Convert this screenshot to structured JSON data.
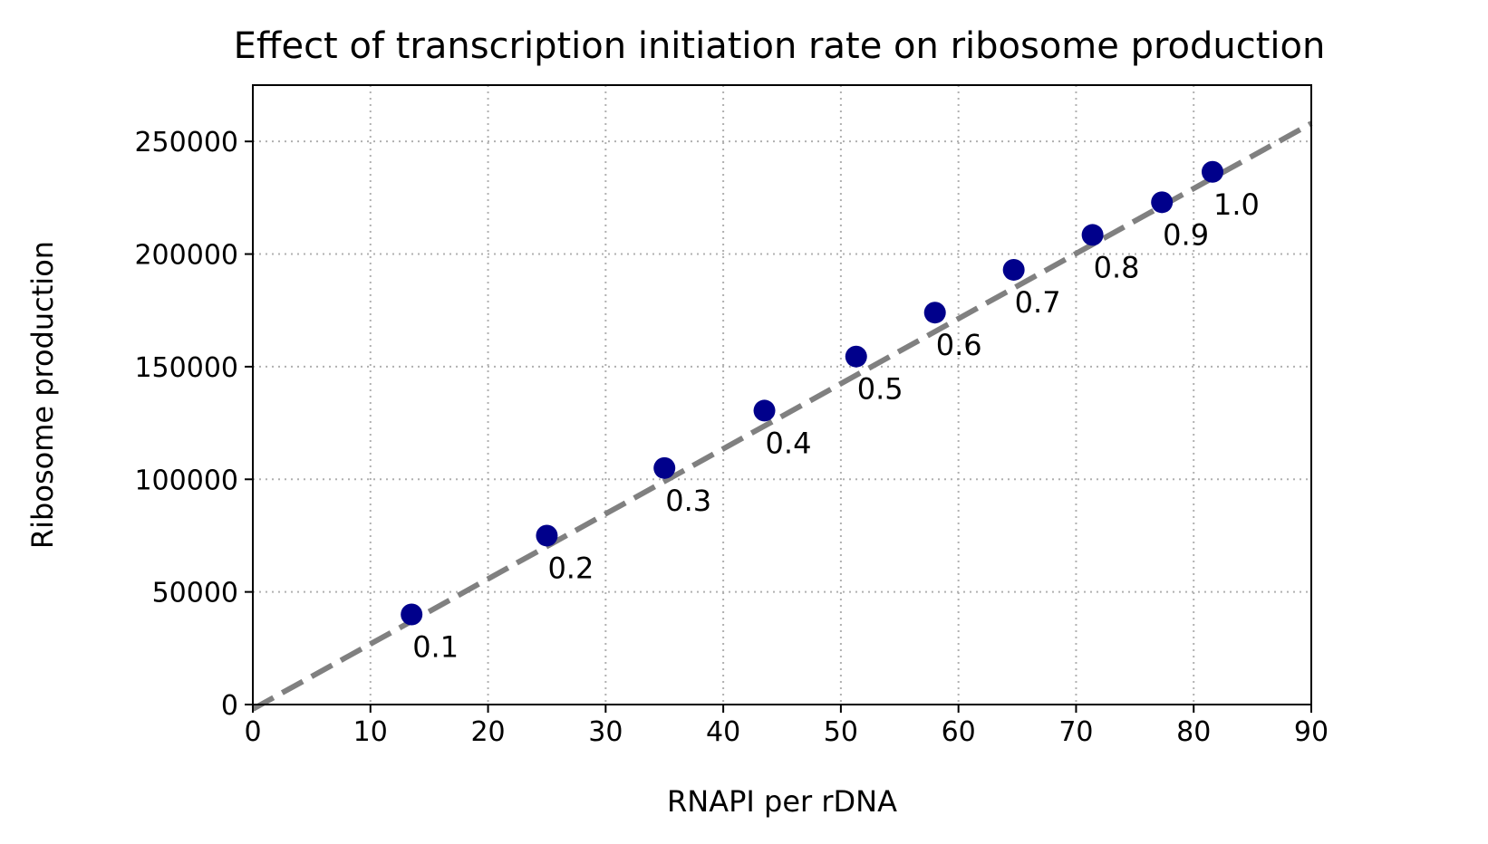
{
  "chart_data": {
    "type": "scatter",
    "title": "Effect of transcription initiation rate on ribosome production",
    "xlabel": "RNAPI per rDNA",
    "ylabel": "Ribosome production",
    "xlim": [
      0,
      90
    ],
    "ylim": [
      0,
      275000
    ],
    "xticks": [
      0,
      10,
      20,
      30,
      40,
      50,
      60,
      70,
      80,
      90
    ],
    "yticks": [
      0,
      50000,
      100000,
      150000,
      200000,
      250000
    ],
    "grid": true,
    "points": [
      {
        "x": 13.5,
        "y": 40000,
        "label": "0.1"
      },
      {
        "x": 25.0,
        "y": 75000,
        "label": "0.2"
      },
      {
        "x": 35.0,
        "y": 105000,
        "label": "0.3"
      },
      {
        "x": 43.5,
        "y": 130500,
        "label": "0.4"
      },
      {
        "x": 51.3,
        "y": 154500,
        "label": "0.5"
      },
      {
        "x": 58.0,
        "y": 174000,
        "label": "0.6"
      },
      {
        "x": 64.7,
        "y": 193000,
        "label": "0.7"
      },
      {
        "x": 71.4,
        "y": 208500,
        "label": "0.8"
      },
      {
        "x": 77.3,
        "y": 223000,
        "label": "0.9"
      },
      {
        "x": 81.6,
        "y": 236500,
        "label": "1.0"
      }
    ],
    "fit_line": {
      "x": [
        0,
        90
      ],
      "y": [
        -2000,
        258000
      ]
    },
    "colors": {
      "points": "#00008b",
      "fit_line": "#808080",
      "grid": "#b0b0b0"
    }
  }
}
